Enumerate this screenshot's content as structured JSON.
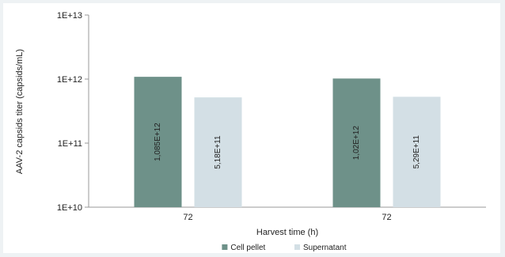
{
  "chart_data": {
    "type": "bar",
    "categories": [
      "72",
      "72"
    ],
    "series": [
      {
        "name": "Cell pellet",
        "values": [
          1085000000000.0,
          1020000000000.0
        ],
        "labels": [
          "1,085E+12",
          "1,02E+12"
        ],
        "color": "#6e9189"
      },
      {
        "name": "Supernatant",
        "values": [
          518000000000.0,
          529000000000.0
        ],
        "labels": [
          "5,18E+11",
          "5,29E+11"
        ],
        "color": "#d3dfe5"
      }
    ],
    "xlabel": "Harvest time (h)",
    "ylabel": "AAV-2 capsids titer (capsids/mL)",
    "yscale": "log",
    "ylim": [
      10000000000.0,
      10000000000000.0
    ],
    "yticks": [
      {
        "value": 10000000000.0,
        "label": "1E+10"
      },
      {
        "value": 100000000000.0,
        "label": "1E+11"
      },
      {
        "value": 1000000000000.0,
        "label": "1E+12"
      },
      {
        "value": 10000000000000.0,
        "label": "1E+13"
      }
    ],
    "grid": false,
    "legend_position": "bottom"
  }
}
